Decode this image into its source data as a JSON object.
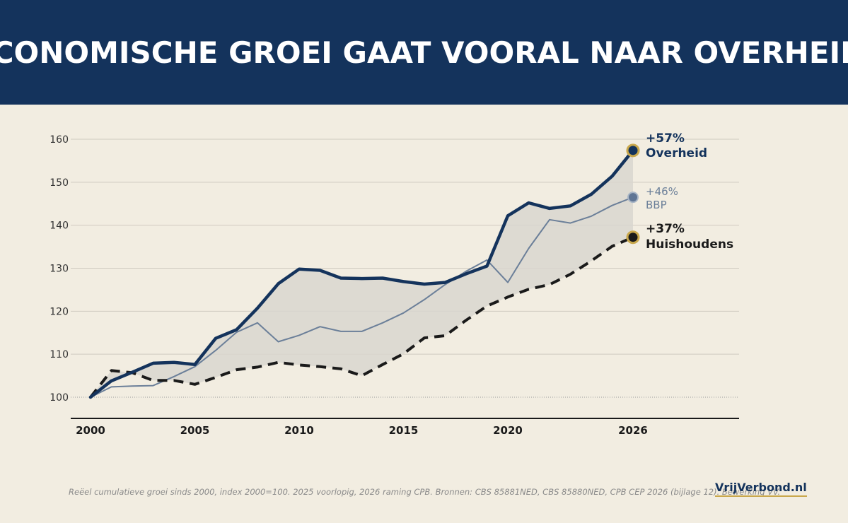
{
  "header": {
    "title": "ECONOMISCHE GROEI GAAT VOORAL NAAR OVERHEID",
    "title_dot": "."
  },
  "colors": {
    "header_bg": "#14335c",
    "background": "#f2ede1",
    "overheid": "#14335c",
    "bbp": "#6b7f99",
    "huishoudens": "#1a1a1a",
    "gold_accent": "#c9a84c",
    "band_fill": "#d9d6cf"
  },
  "chart_data": {
    "type": "line",
    "ylim": [
      95,
      165
    ],
    "xlim": [
      2000,
      2030
    ],
    "yticks": [
      100,
      110,
      120,
      130,
      140,
      150,
      160
    ],
    "xticks": [
      2000,
      2005,
      2010,
      2015,
      2020,
      2026
    ],
    "grid": true,
    "x": [
      2000,
      2001,
      2002,
      2003,
      2004,
      2005,
      2006,
      2007,
      2008,
      2009,
      2010,
      2011,
      2012,
      2013,
      2014,
      2015,
      2016,
      2017,
      2018,
      2019,
      2020,
      2021,
      2022,
      2023,
      2024,
      2025,
      2026
    ],
    "series": [
      {
        "key": "overheid",
        "values": [
          100,
          103.8,
          105.8,
          107.9,
          108.1,
          107.6,
          113.7,
          115.7,
          120.7,
          126.4,
          129.8,
          129.5,
          127.7,
          127.6,
          127.7,
          126.9,
          126.3,
          126.7,
          128.7,
          130.5,
          142.2,
          145.2,
          143.9,
          144.5,
          147.2,
          151.4,
          157.4
        ],
        "style": "solid-thick",
        "end_label_value": "+57%",
        "end_label_name": "Overheid"
      },
      {
        "key": "bbp",
        "values": [
          100,
          102.4,
          102.6,
          102.7,
          104.8,
          107.1,
          110.9,
          115.1,
          117.3,
          112.9,
          114.4,
          116.4,
          115.3,
          115.3,
          117.3,
          119.6,
          122.7,
          126.2,
          129.3,
          131.9,
          126.7,
          134.6,
          141.3,
          140.5,
          142.1,
          144.6,
          146.5
        ],
        "style": "solid-thin",
        "end_label_value": "+46%",
        "end_label_name": "BBP"
      },
      {
        "key": "huishoudens",
        "values": [
          100,
          106.2,
          105.7,
          103.9,
          103.9,
          103.0,
          104.6,
          106.4,
          107.0,
          108.1,
          107.5,
          107.1,
          106.6,
          105.0,
          107.6,
          110.1,
          113.8,
          114.3,
          117.9,
          121.2,
          123.3,
          125.1,
          126.2,
          128.6,
          131.7,
          135.1,
          137.2
        ],
        "style": "dashed-thick",
        "end_label_value": "+37%",
        "end_label_name": "Huishoudens"
      }
    ]
  },
  "footer": {
    "note": "Reëel cumulatieve groei sinds 2000, index 2000=100. 2025 voorlopig, 2026 raming CPB. Bronnen: CBS 85881NED, CBS 85880NED, CPB CEP 2026 (bijlage 12). Bewerking VV.",
    "brand": "VrijVerbond.nl"
  }
}
